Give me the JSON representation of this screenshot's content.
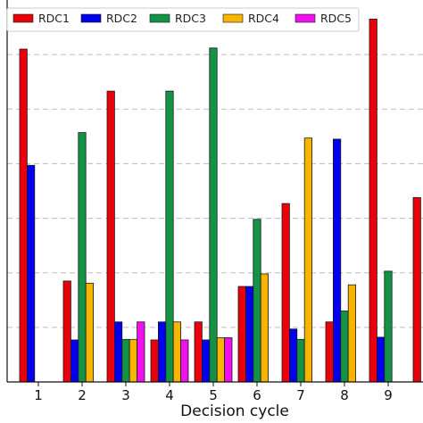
{
  "chart_data": {
    "type": "bar",
    "xlabel": "Decision cycle",
    "ylabel": "",
    "categories": [
      "1",
      "2",
      "3",
      "4",
      "5",
      "6",
      "7",
      "8",
      "9",
      ""
    ],
    "ylim": [
      0,
      7
    ],
    "yticks": [
      1,
      2,
      3,
      4,
      5,
      6
    ],
    "ytick_labels_visible": false,
    "grid": "horizontal dashed",
    "legend": "top",
    "series": [
      {
        "name": "RDC1",
        "color": "#e8000b",
        "values": [
          6.1,
          1.85,
          5.33,
          0.77,
          1.1,
          1.75,
          3.27,
          1.1,
          6.65,
          3.38
        ]
      },
      {
        "name": "RDC2",
        "color": "#0000ee",
        "values": [
          3.97,
          0.77,
          1.1,
          1.1,
          0.77,
          1.75,
          0.97,
          4.45,
          0.82,
          0
        ]
      },
      {
        "name": "RDC3",
        "color": "#149245",
        "values": [
          0,
          4.57,
          0.78,
          5.33,
          6.12,
          2.98,
          0.78,
          1.3,
          2.03,
          0
        ]
      },
      {
        "name": "RDC4",
        "color": "#f7b500",
        "values": [
          0,
          1.81,
          0.78,
          1.1,
          0.81,
          1.98,
          4.47,
          1.78,
          0,
          0
        ]
      },
      {
        "name": "RDC5",
        "color": "#ee11ee",
        "values": [
          0,
          0,
          1.1,
          0.77,
          0.81,
          0,
          0,
          0,
          0,
          0
        ]
      }
    ]
  }
}
